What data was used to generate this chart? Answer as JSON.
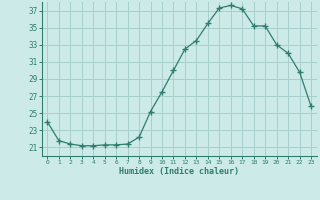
{
  "x": [
    0,
    1,
    2,
    3,
    4,
    5,
    6,
    7,
    8,
    9,
    10,
    11,
    12,
    13,
    14,
    15,
    16,
    17,
    18,
    19,
    20,
    21,
    22,
    23
  ],
  "y": [
    24.0,
    21.8,
    21.4,
    21.2,
    21.2,
    21.3,
    21.3,
    21.4,
    22.2,
    25.2,
    27.5,
    30.0,
    32.5,
    33.5,
    35.5,
    37.3,
    37.6,
    37.2,
    35.2,
    35.2,
    33.0,
    32.0,
    29.8,
    25.8
  ],
  "line_color": "#2e7d6e",
  "marker": "+",
  "marker_size": 4,
  "bg_color": "#cceae8",
  "grid_color": "#a8cece",
  "xlabel": "Humidex (Indice chaleur)",
  "ylim": [
    20,
    38
  ],
  "yticks": [
    21,
    23,
    25,
    27,
    29,
    31,
    33,
    35,
    37
  ],
  "xticks": [
    0,
    1,
    2,
    3,
    4,
    5,
    6,
    7,
    8,
    9,
    10,
    11,
    12,
    13,
    14,
    15,
    16,
    17,
    18,
    19,
    20,
    21,
    22,
    23
  ],
  "tick_color": "#2e7d6e",
  "label_color": "#2e7d6e"
}
